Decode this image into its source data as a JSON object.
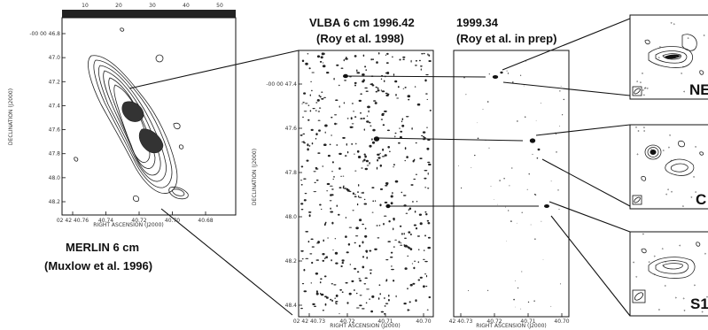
{
  "labels": {
    "vlba_title": "VLBA 6 cm 1996.42",
    "vlba_ref": "(Roy et al. 1998)",
    "epoch2_title": "1999.34",
    "epoch2_ref": "(Roy et al. in prep)",
    "merlin_title": "MERLIN 6 cm",
    "merlin_ref": "(Muxlow et al. 1996)"
  },
  "merlin_panel": {
    "top_scale": [
      "10",
      "20",
      "30",
      "40",
      "50"
    ],
    "y_ticks": [
      "-00 00 46.8",
      "47.0",
      "47.2",
      "47.4",
      "47.6",
      "47.8",
      "48.0",
      "48.2"
    ],
    "x_ticks": [
      "02 42 40.76",
      "40.74",
      "40.72",
      "40.70",
      "40.68"
    ],
    "xlabel": "RIGHT ASCENSION (J2000)",
    "ylabel": "DECLINATION (J2000)"
  },
  "vlba_panel": {
    "y_ticks": [
      "-00 00 47.4",
      "47.6",
      "47.8",
      "48.0",
      "48.2",
      "48.4"
    ],
    "x_ticks": [
      "02 42 40.73",
      "40.72",
      "40.71",
      "40.70"
    ],
    "xlabel": "RIGHT ASCENSION (J2000)",
    "ylabel": "DECLINATION (J2000)"
  },
  "epoch2_panel": {
    "x_ticks": [
      "42 40.73",
      "40.72",
      "40.71",
      "40.70"
    ],
    "xlabel": "RIGHT ASCENSION (J2000)"
  },
  "zoom_panels": [
    "NE",
    "C",
    "S1"
  ],
  "colors": {
    "ink": "#111111",
    "background": "#ffffff"
  }
}
